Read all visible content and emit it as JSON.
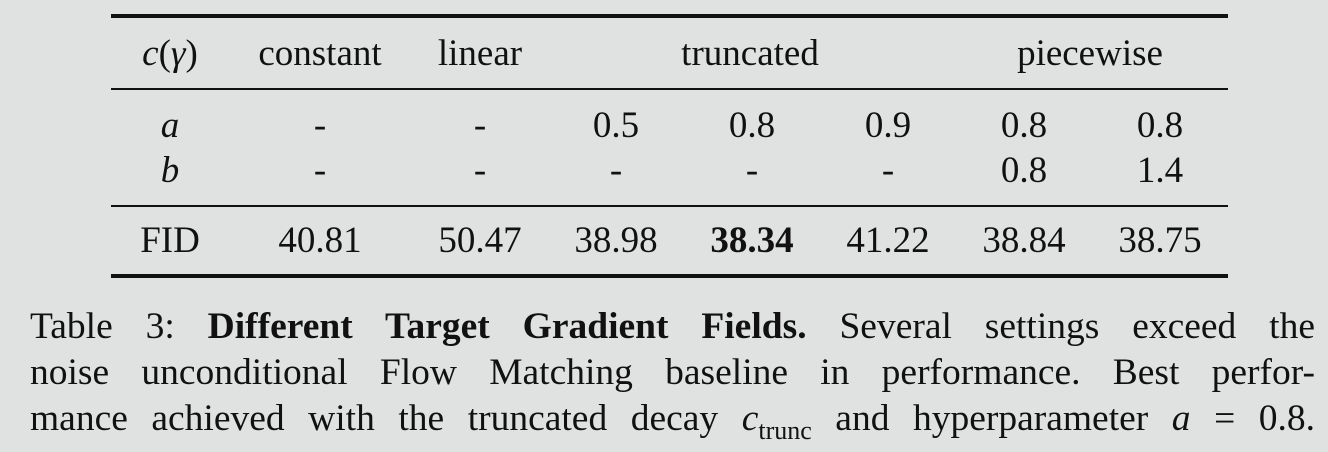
{
  "table": {
    "header": {
      "label": "c(γ)",
      "label_italic": "c",
      "label_open": "(",
      "label_gamma": "γ",
      "label_close": ")",
      "columns": [
        "constant",
        "linear",
        "truncated",
        "piecewise"
      ]
    },
    "param_rows": [
      {
        "label": "a",
        "values": [
          "-",
          "-",
          "0.5",
          "0.8",
          "0.9",
          "0.8",
          "0.8"
        ]
      },
      {
        "label": "b",
        "values": [
          "-",
          "-",
          "-",
          "-",
          "-",
          "0.8",
          "1.4"
        ]
      }
    ],
    "fid_row": {
      "label": "FID",
      "values": [
        "40.81",
        "50.47",
        "38.98",
        "38.34",
        "41.22",
        "38.84",
        "38.75"
      ],
      "best_index": 3
    }
  },
  "caption": {
    "prefix": "Table 3: ",
    "title": "Different Target Gradient Fields.",
    "line1_rest": " Several settings exceed the",
    "line2": "noise unconditional Flow Matching baseline in performance. Best perfor-",
    "line3_a": "mance achieved with the truncated decay ",
    "line3_c": "c",
    "line3_sub": "trunc",
    "line3_b": " and hyperparameter ",
    "line3_a_var": "a",
    "line3_eq": " = 0.8."
  }
}
